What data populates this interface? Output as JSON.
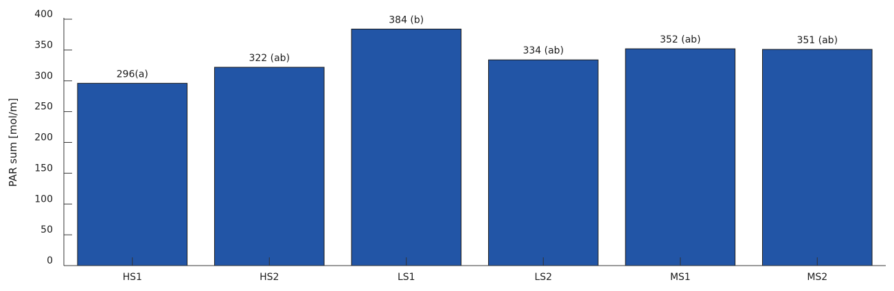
{
  "chart_data": {
    "type": "bar",
    "categories": [
      "HS1",
      "HS2",
      "LS1",
      "LS2",
      "MS1",
      "MS2"
    ],
    "values": [
      296,
      322,
      384,
      334,
      352,
      351
    ],
    "data_labels": [
      "296(a)",
      "322 (ab)",
      "384 (b)",
      "334 (ab)",
      "352 (ab)",
      "351 (ab)"
    ],
    "ylabel": "PAR sum [mol/m]",
    "xlabel": "",
    "ylim": [
      0,
      400
    ],
    "yticks": [
      "0",
      "50",
      "100",
      "150",
      "200",
      "250",
      "300",
      "350",
      "400"
    ],
    "bar_color": "#2255a6",
    "grid": false,
    "legend": "none"
  }
}
